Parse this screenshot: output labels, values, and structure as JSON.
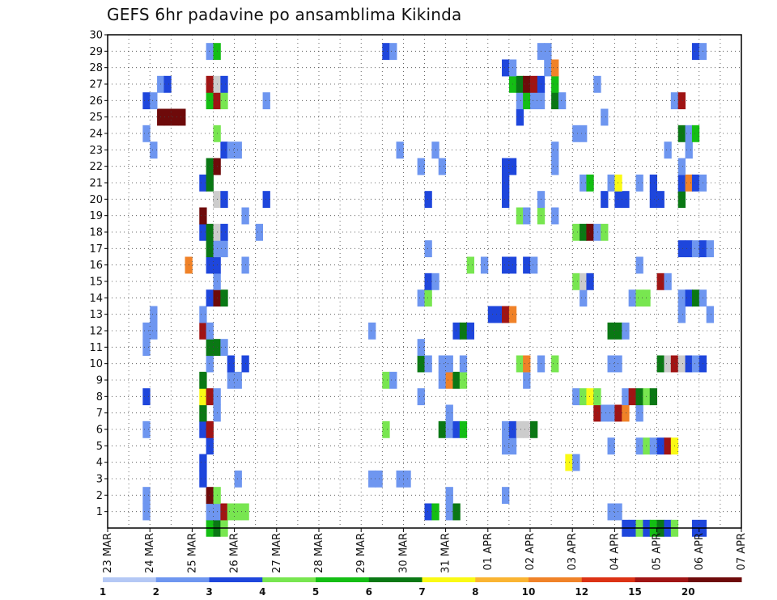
{
  "chart_data": {
    "type": "heatmap",
    "title": "GEFS 6hr padavine po ansamblima Kikinda",
    "x_tick_labels": [
      "23 MAR",
      "24 MAR",
      "25 MAR",
      "26 MAR",
      "27 MAR",
      "28 MAR",
      "29 MAR",
      "30 MAR",
      "31 MAR",
      "01 APR",
      "02 APR",
      "03 APR",
      "04 APR",
      "05 APR",
      "06 APR",
      "07 APR"
    ],
    "x_range_days": [
      0,
      15
    ],
    "y_tick_labels": [
      "1",
      "2",
      "3",
      "4",
      "5",
      "6",
      "7",
      "8",
      "9",
      "10",
      "11",
      "12",
      "13",
      "14",
      "15",
      "16",
      "17",
      "18",
      "19",
      "20",
      "21",
      "22",
      "23",
      "24",
      "25",
      "26",
      "27",
      "28",
      "29",
      "30"
    ],
    "y_range": [
      0,
      30
    ],
    "grid": true,
    "colorbar": {
      "levels": [
        "1",
        "2",
        "3",
        "4",
        "5",
        "6",
        "7",
        "8",
        "10",
        "12",
        "15",
        "20"
      ],
      "colors": [
        "#b4c8f5",
        "#6e96f0",
        "#1e46dc",
        "#78e650",
        "#14be14",
        "#0a7814",
        "#fafa14",
        "#fab432",
        "#f08228",
        "#dc3214",
        "#a01414",
        "#6e0a0a"
      ]
    },
    "cells": [
      [
        2.33,
        0,
        4
      ],
      [
        2.5,
        0,
        5
      ],
      [
        2.67,
        0,
        3
      ],
      [
        12.17,
        0,
        2
      ],
      [
        12.33,
        0,
        2
      ],
      [
        12.5,
        0,
        3
      ],
      [
        12.67,
        0,
        2
      ],
      [
        12.83,
        0,
        4
      ],
      [
        13.0,
        0,
        5
      ],
      [
        13.17,
        0,
        2
      ],
      [
        13.33,
        0,
        3
      ],
      [
        13.83,
        0,
        2
      ],
      [
        14.0,
        0,
        2
      ],
      [
        2.33,
        1,
        1
      ],
      [
        2.5,
        1,
        1
      ],
      [
        2.67,
        1,
        10
      ],
      [
        2.83,
        1,
        3
      ],
      [
        3.0,
        1,
        3
      ],
      [
        3.17,
        1,
        3
      ],
      [
        7.5,
        1,
        2
      ],
      [
        7.67,
        1,
        4
      ],
      [
        8.0,
        1,
        1
      ],
      [
        8.17,
        1,
        5
      ],
      [
        11.83,
        1,
        1
      ],
      [
        12.0,
        1,
        1
      ],
      [
        0.83,
        1,
        1
      ],
      [
        0.83,
        2,
        1
      ],
      [
        2.33,
        2,
        11
      ],
      [
        2.5,
        2,
        3
      ],
      [
        8.0,
        2,
        1
      ],
      [
        9.33,
        2,
        1
      ],
      [
        2.17,
        3,
        2
      ],
      [
        3.0,
        3,
        1
      ],
      [
        7.0,
        3,
        1
      ],
      [
        6.83,
        3,
        1
      ],
      [
        6.17,
        3,
        1
      ],
      [
        6.33,
        3,
        1
      ],
      [
        2.17,
        4,
        2
      ],
      [
        10.83,
        4,
        6
      ],
      [
        11.0,
        4,
        1
      ],
      [
        2.33,
        5,
        2
      ],
      [
        9.33,
        5,
        1
      ],
      [
        9.5,
        5,
        1
      ],
      [
        11.83,
        5,
        1
      ],
      [
        12.5,
        5,
        1
      ],
      [
        12.67,
        5,
        3
      ],
      [
        12.83,
        5,
        1
      ],
      [
        13.0,
        5,
        2
      ],
      [
        13.17,
        5,
        10
      ],
      [
        13.33,
        5,
        6
      ],
      [
        0.83,
        6,
        1
      ],
      [
        2.17,
        6,
        2
      ],
      [
        2.33,
        6,
        10
      ],
      [
        6.5,
        6,
        3
      ],
      [
        7.83,
        6,
        5
      ],
      [
        8.0,
        6,
        1
      ],
      [
        8.17,
        6,
        2
      ],
      [
        8.33,
        6,
        4
      ],
      [
        9.33,
        6,
        1
      ],
      [
        9.5,
        6,
        2
      ],
      [
        9.67,
        6,
        13
      ],
      [
        9.83,
        6,
        13
      ],
      [
        10.0,
        6,
        5
      ],
      [
        2.17,
        7,
        5
      ],
      [
        2.5,
        7,
        1
      ],
      [
        8.0,
        7,
        1
      ],
      [
        11.5,
        7,
        10
      ],
      [
        11.67,
        7,
        1
      ],
      [
        11.83,
        7,
        1
      ],
      [
        12.0,
        7,
        10
      ],
      [
        12.17,
        7,
        8
      ],
      [
        12.5,
        7,
        1
      ],
      [
        0.83,
        8,
        2
      ],
      [
        2.17,
        8,
        6
      ],
      [
        2.33,
        8,
        10
      ],
      [
        2.5,
        8,
        1
      ],
      [
        7.33,
        8,
        1
      ],
      [
        11.0,
        8,
        1
      ],
      [
        11.17,
        8,
        3
      ],
      [
        11.33,
        8,
        6
      ],
      [
        11.5,
        8,
        3
      ],
      [
        12.17,
        8,
        1
      ],
      [
        12.33,
        8,
        10
      ],
      [
        12.5,
        8,
        5
      ],
      [
        12.67,
        8,
        3
      ],
      [
        12.83,
        8,
        5
      ],
      [
        2.17,
        9,
        5
      ],
      [
        2.83,
        9,
        1
      ],
      [
        3.0,
        9,
        1
      ],
      [
        6.5,
        9,
        3
      ],
      [
        6.67,
        9,
        1
      ],
      [
        7.83,
        9,
        1
      ],
      [
        8.0,
        9,
        8
      ],
      [
        8.17,
        9,
        5
      ],
      [
        8.33,
        9,
        3
      ],
      [
        9.83,
        9,
        1
      ],
      [
        2.33,
        10,
        1
      ],
      [
        2.83,
        10,
        2
      ],
      [
        3.17,
        10,
        2
      ],
      [
        7.33,
        10,
        5
      ],
      [
        7.5,
        10,
        1
      ],
      [
        7.83,
        10,
        1
      ],
      [
        8.0,
        10,
        1
      ],
      [
        8.33,
        10,
        1
      ],
      [
        9.67,
        10,
        3
      ],
      [
        9.83,
        10,
        8
      ],
      [
        10.17,
        10,
        1
      ],
      [
        10.5,
        10,
        3
      ],
      [
        11.83,
        10,
        1
      ],
      [
        12.0,
        10,
        1
      ],
      [
        13.0,
        10,
        5
      ],
      [
        13.17,
        10,
        13
      ],
      [
        13.33,
        10,
        10
      ],
      [
        13.5,
        10,
        12
      ],
      [
        13.67,
        10,
        2
      ],
      [
        13.83,
        10,
        1
      ],
      [
        14.0,
        10,
        2
      ],
      [
        0.83,
        11,
        1
      ],
      [
        2.33,
        11,
        5
      ],
      [
        2.5,
        11,
        5
      ],
      [
        2.67,
        11,
        1
      ],
      [
        7.33,
        11,
        1
      ],
      [
        0.83,
        12,
        1
      ],
      [
        1.0,
        12,
        1
      ],
      [
        2.17,
        12,
        10
      ],
      [
        2.33,
        12,
        1
      ],
      [
        6.17,
        12,
        1
      ],
      [
        8.17,
        12,
        2
      ],
      [
        8.33,
        12,
        5
      ],
      [
        8.5,
        12,
        2
      ],
      [
        11.83,
        12,
        5
      ],
      [
        12.0,
        12,
        5
      ],
      [
        12.17,
        12,
        1
      ],
      [
        1.0,
        13,
        1
      ],
      [
        2.17,
        13,
        1
      ],
      [
        9.0,
        13,
        2
      ],
      [
        9.17,
        13,
        2
      ],
      [
        9.33,
        13,
        10
      ],
      [
        9.5,
        13,
        8
      ],
      [
        13.5,
        13,
        1
      ],
      [
        14.17,
        13,
        1
      ],
      [
        2.33,
        14,
        2
      ],
      [
        2.5,
        14,
        11
      ],
      [
        2.67,
        14,
        5
      ],
      [
        7.33,
        14,
        1
      ],
      [
        7.5,
        14,
        3
      ],
      [
        11.17,
        14,
        1
      ],
      [
        12.33,
        14,
        1
      ],
      [
        12.5,
        14,
        3
      ],
      [
        12.67,
        14,
        3
      ],
      [
        13.5,
        14,
        1
      ],
      [
        13.67,
        14,
        2
      ],
      [
        13.83,
        14,
        5
      ],
      [
        14.0,
        14,
        1
      ],
      [
        2.5,
        15,
        1
      ],
      [
        7.5,
        15,
        2
      ],
      [
        7.67,
        15,
        1
      ],
      [
        11.0,
        15,
        3
      ],
      [
        11.17,
        15,
        13
      ],
      [
        11.33,
        15,
        2
      ],
      [
        13.0,
        15,
        10
      ],
      [
        13.17,
        15,
        1
      ],
      [
        1.83,
        16,
        8
      ],
      [
        2.33,
        16,
        2
      ],
      [
        2.5,
        16,
        2
      ],
      [
        3.17,
        16,
        1
      ],
      [
        8.5,
        16,
        3
      ],
      [
        8.83,
        16,
        1
      ],
      [
        9.33,
        16,
        2
      ],
      [
        9.5,
        16,
        2
      ],
      [
        9.83,
        16,
        2
      ],
      [
        10.0,
        16,
        1
      ],
      [
        12.5,
        16,
        1
      ],
      [
        2.33,
        17,
        5
      ],
      [
        2.5,
        17,
        1
      ],
      [
        2.67,
        17,
        1
      ],
      [
        7.5,
        17,
        1
      ],
      [
        13.5,
        17,
        2
      ],
      [
        13.67,
        17,
        2
      ],
      [
        13.83,
        17,
        1
      ],
      [
        14.0,
        17,
        2
      ],
      [
        14.17,
        17,
        1
      ],
      [
        2.17,
        18,
        2
      ],
      [
        2.33,
        18,
        5
      ],
      [
        2.5,
        18,
        13
      ],
      [
        2.67,
        18,
        2
      ],
      [
        3.5,
        18,
        1
      ],
      [
        11.0,
        18,
        3
      ],
      [
        11.17,
        18,
        5
      ],
      [
        11.33,
        18,
        11
      ],
      [
        11.5,
        18,
        1
      ],
      [
        11.67,
        18,
        3
      ],
      [
        2.17,
        19,
        11
      ],
      [
        3.17,
        19,
        1
      ],
      [
        9.67,
        19,
        3
      ],
      [
        9.83,
        19,
        1
      ],
      [
        10.17,
        19,
        3
      ],
      [
        10.5,
        19,
        1
      ],
      [
        2.5,
        20,
        13
      ],
      [
        2.67,
        20,
        2
      ],
      [
        3.67,
        20,
        2
      ],
      [
        7.5,
        20,
        2
      ],
      [
        9.33,
        20,
        2
      ],
      [
        10.17,
        20,
        1
      ],
      [
        11.67,
        20,
        2
      ],
      [
        12.0,
        20,
        2
      ],
      [
        12.17,
        20,
        2
      ],
      [
        12.83,
        20,
        2
      ],
      [
        13.0,
        20,
        2
      ],
      [
        13.5,
        20,
        5
      ],
      [
        2.17,
        21,
        2
      ],
      [
        2.33,
        21,
        5
      ],
      [
        9.33,
        21,
        2
      ],
      [
        11.17,
        21,
        1
      ],
      [
        11.33,
        21,
        4
      ],
      [
        11.83,
        21,
        1
      ],
      [
        12.0,
        21,
        6
      ],
      [
        12.5,
        21,
        1
      ],
      [
        12.83,
        21,
        2
      ],
      [
        13.5,
        21,
        2
      ],
      [
        13.67,
        21,
        8
      ],
      [
        13.83,
        21,
        2
      ],
      [
        14.0,
        21,
        1
      ],
      [
        2.33,
        22,
        5
      ],
      [
        2.5,
        22,
        11
      ],
      [
        7.33,
        22,
        1
      ],
      [
        7.83,
        22,
        1
      ],
      [
        9.33,
        22,
        2
      ],
      [
        9.5,
        22,
        2
      ],
      [
        10.5,
        22,
        1
      ],
      [
        13.5,
        22,
        1
      ],
      [
        2.67,
        23,
        2
      ],
      [
        2.83,
        23,
        1
      ],
      [
        3.0,
        23,
        1
      ],
      [
        1.0,
        23,
        1
      ],
      [
        6.83,
        23,
        1
      ],
      [
        7.67,
        23,
        1
      ],
      [
        10.5,
        23,
        1
      ],
      [
        13.17,
        23,
        1
      ],
      [
        13.67,
        23,
        1
      ],
      [
        0.83,
        24,
        1
      ],
      [
        2.5,
        24,
        3
      ],
      [
        11.0,
        24,
        1
      ],
      [
        11.17,
        24,
        1
      ],
      [
        13.5,
        24,
        5
      ],
      [
        13.67,
        24,
        1
      ],
      [
        13.83,
        24,
        4
      ],
      [
        1.17,
        25,
        11
      ],
      [
        1.33,
        25,
        11
      ],
      [
        1.5,
        25,
        11
      ],
      [
        1.67,
        25,
        11
      ],
      [
        9.67,
        25,
        2
      ],
      [
        11.67,
        25,
        1
      ],
      [
        0.83,
        26,
        2
      ],
      [
        1.0,
        26,
        1
      ],
      [
        2.33,
        26,
        4
      ],
      [
        2.5,
        26,
        10
      ],
      [
        2.67,
        26,
        3
      ],
      [
        3.67,
        26,
        1
      ],
      [
        9.67,
        26,
        1
      ],
      [
        9.83,
        26,
        4
      ],
      [
        10.0,
        26,
        1
      ],
      [
        10.17,
        26,
        1
      ],
      [
        10.5,
        26,
        5
      ],
      [
        10.67,
        26,
        1
      ],
      [
        13.33,
        26,
        1
      ],
      [
        13.5,
        26,
        10
      ],
      [
        1.17,
        27,
        1
      ],
      [
        1.33,
        27,
        2
      ],
      [
        2.33,
        27,
        10
      ],
      [
        2.5,
        27,
        12
      ],
      [
        2.67,
        27,
        2
      ],
      [
        9.5,
        27,
        4
      ],
      [
        9.67,
        27,
        5
      ],
      [
        9.83,
        27,
        11
      ],
      [
        10.0,
        27,
        10
      ],
      [
        10.17,
        27,
        2
      ],
      [
        10.5,
        27,
        4
      ],
      [
        11.5,
        27,
        1
      ],
      [
        9.33,
        28,
        2
      ],
      [
        9.5,
        28,
        1
      ],
      [
        10.33,
        28,
        1
      ],
      [
        10.5,
        28,
        8
      ],
      [
        2.33,
        29,
        1
      ],
      [
        2.5,
        29,
        4
      ],
      [
        6.5,
        29,
        2
      ],
      [
        6.67,
        29,
        1
      ],
      [
        10.17,
        29,
        1
      ],
      [
        10.33,
        29,
        1
      ],
      [
        13.83,
        29,
        2
      ],
      [
        14.0,
        29,
        1
      ]
    ]
  }
}
